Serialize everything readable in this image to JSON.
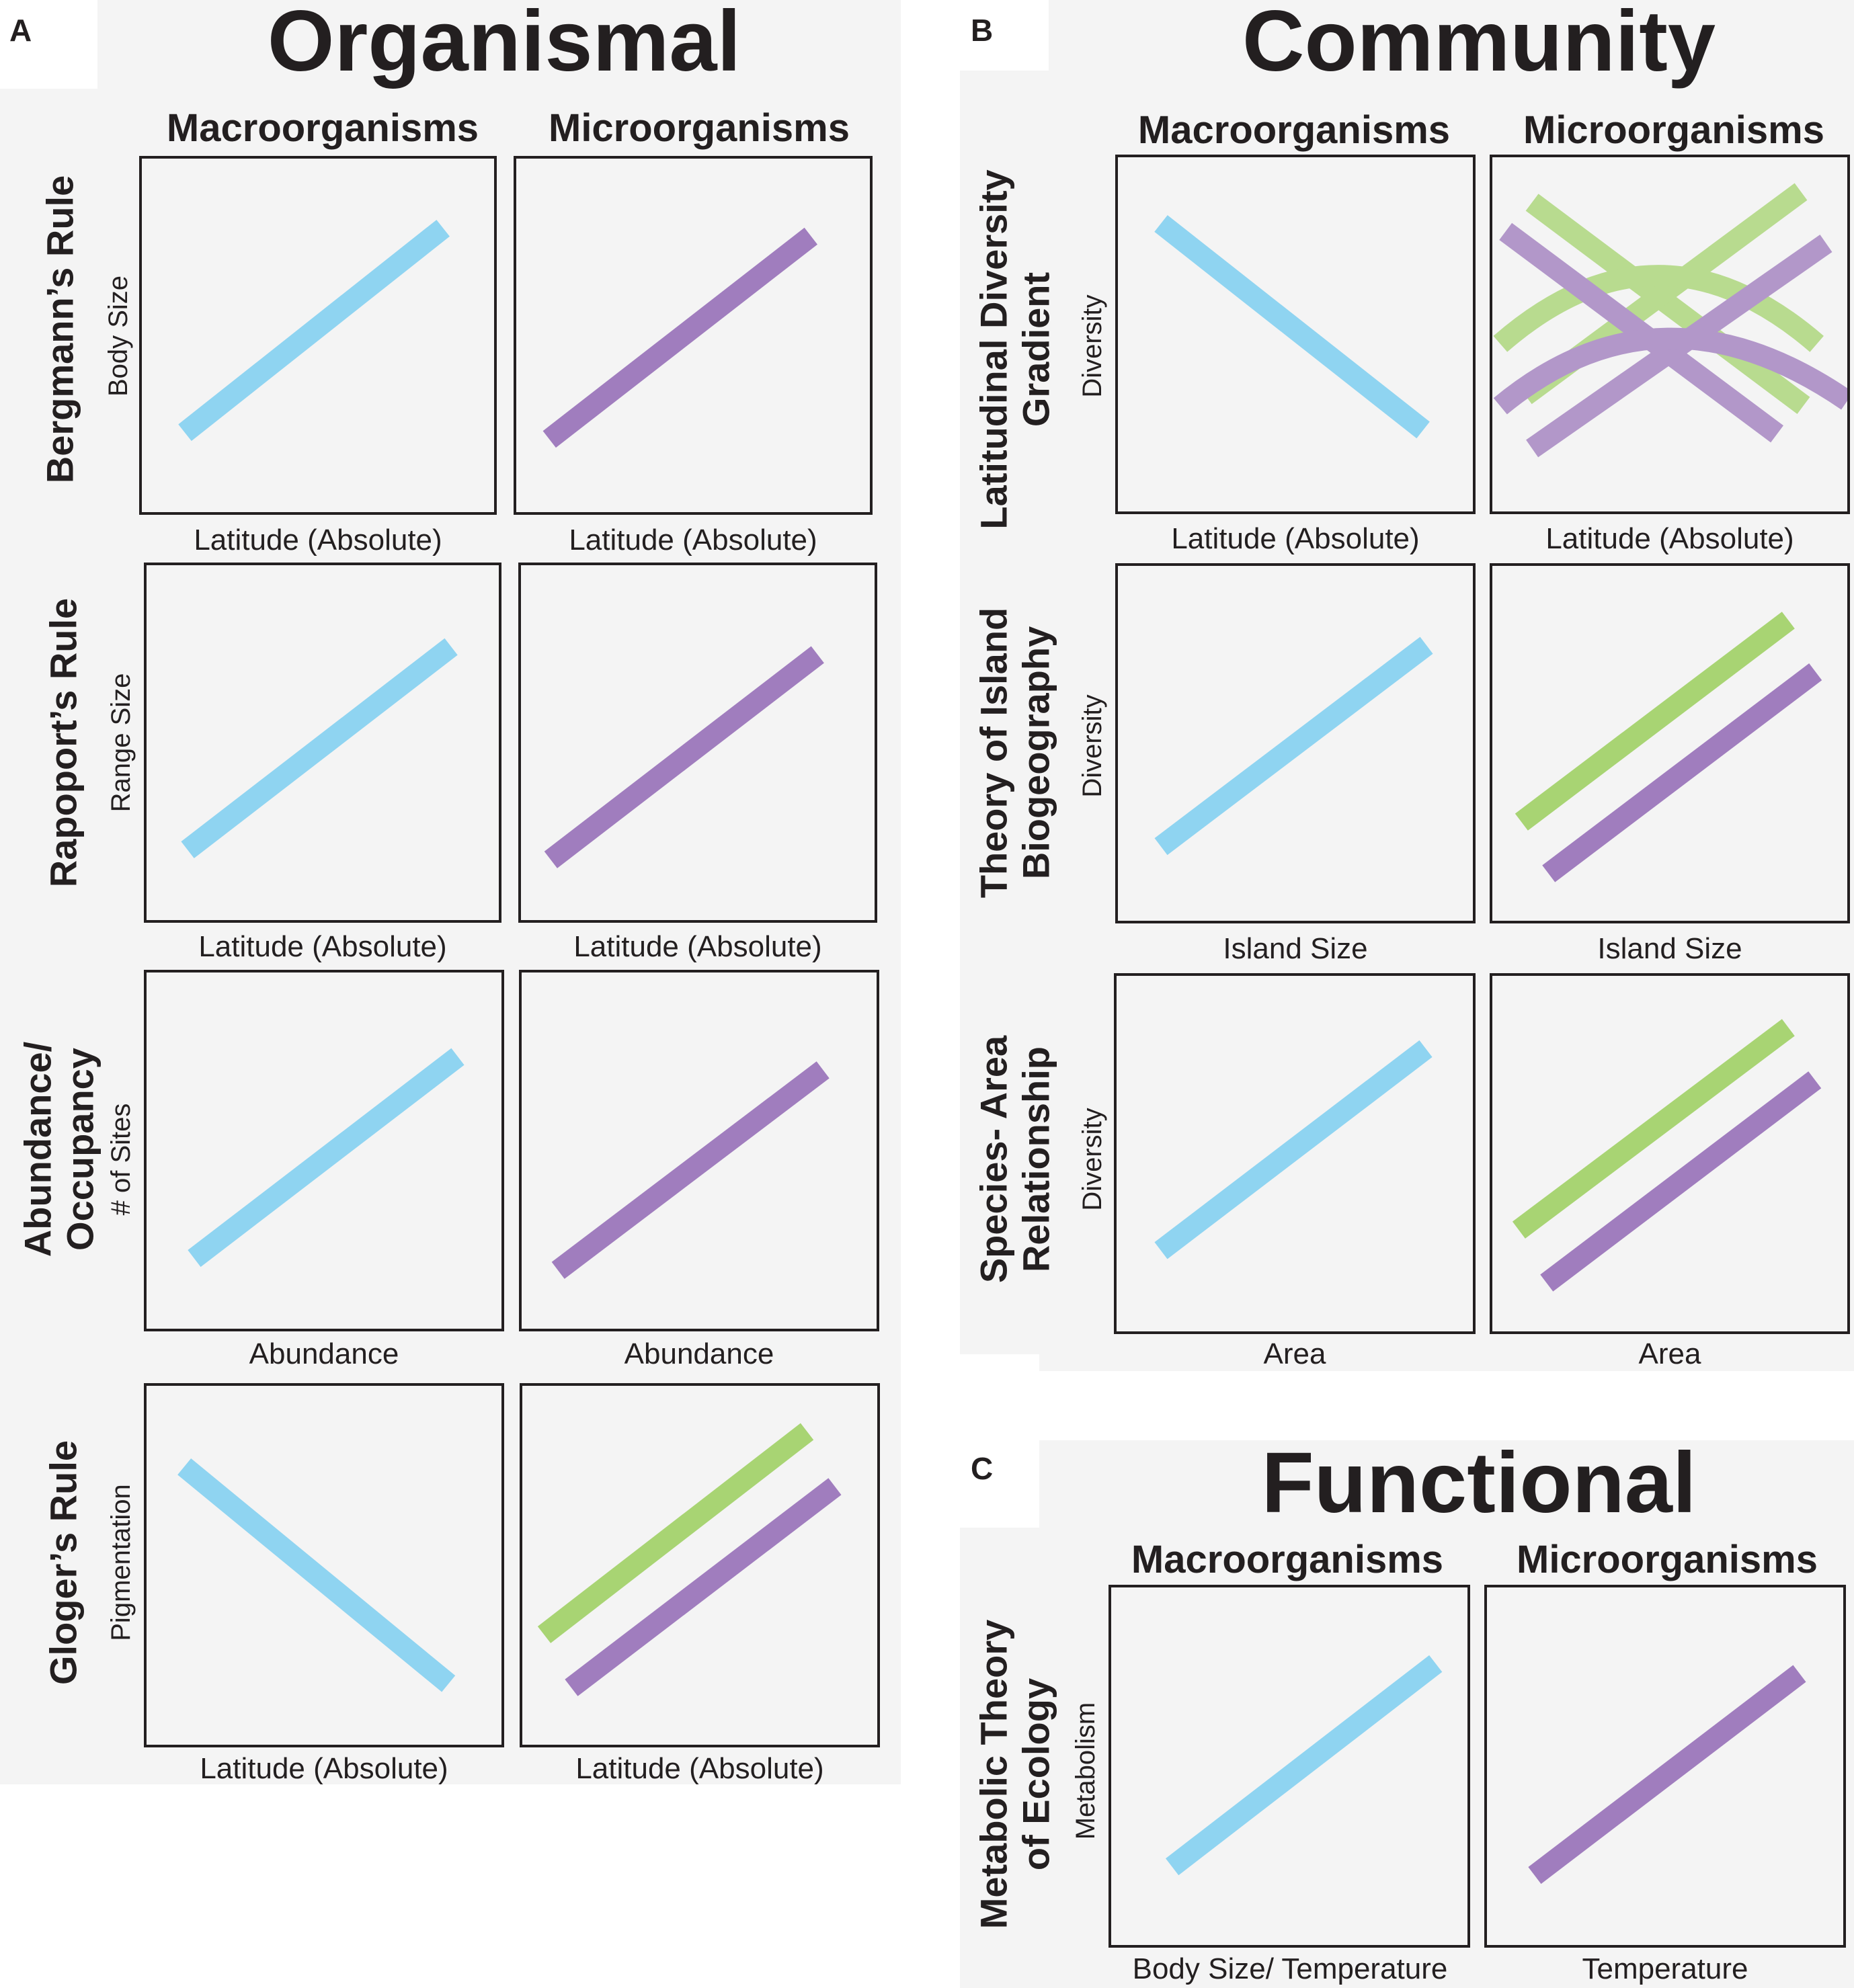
{
  "colors": {
    "macro": "#8fd4f1",
    "micro_purple": "#a07dbe",
    "micro_green": "#a8d473",
    "panel_bg": "#f4f4f4",
    "frame": "#231f20"
  },
  "panels": {
    "A": {
      "letter": "A",
      "title": "Organismal"
    },
    "B": {
      "letter": "B",
      "title": "Community"
    },
    "C": {
      "letter": "C",
      "title": "Functional"
    }
  },
  "columns": {
    "macro": "Macroorganisms",
    "micro": "Microorganisms"
  },
  "rows": {
    "bergmann": {
      "label_lines": [
        "Bergmann’s Rule"
      ],
      "ylabel": "Body Size",
      "xlabel_macro": "Latitude (Absolute)",
      "xlabel_micro": "Latitude (Absolute)"
    },
    "rapoport": {
      "label_lines": [
        "Rapoport’s Rule"
      ],
      "ylabel": "Range Size",
      "xlabel_macro": "Latitude (Absolute)",
      "xlabel_micro": "Latitude (Absolute)"
    },
    "abundance": {
      "label_lines": [
        "Abundance/",
        "Occupancy"
      ],
      "ylabel": "# of Sites",
      "xlabel_macro": "Abundance",
      "xlabel_micro": "Abundance"
    },
    "gloger": {
      "label_lines": [
        "Gloger’s Rule"
      ],
      "ylabel": "Pigmentation",
      "xlabel_macro": "Latitude (Absolute)",
      "xlabel_micro": "Latitude (Absolute)"
    },
    "ldg": {
      "label_lines": [
        "Latitudinal Diversity",
        "Gradient"
      ],
      "ylabel": "Diversity",
      "xlabel_macro": "Latitude (Absolute)",
      "xlabel_micro": "Latitude (Absolute)"
    },
    "island": {
      "label_lines": [
        "Theory of Island",
        "Biogeography"
      ],
      "ylabel": "Diversity",
      "xlabel_macro": "Island Size",
      "xlabel_micro": "Island Size"
    },
    "species_area": {
      "label_lines": [
        "Species- Area",
        "Relationship"
      ],
      "ylabel": "Diversity",
      "xlabel_macro": "Area",
      "xlabel_micro": "Area"
    },
    "mte": {
      "label_lines": [
        "Metabolic Theory",
        "of Ecology"
      ],
      "ylabel": "Metabolism",
      "xlabel_macro": "Body Size/ Temperature",
      "xlabel_micro": "Temperature"
    }
  },
  "trends": {
    "bergmann": {
      "macro": "positive",
      "micro": "positive"
    },
    "rapoport": {
      "macro": "positive",
      "micro": "positive"
    },
    "abundance": {
      "macro": "positive",
      "micro": "positive"
    },
    "gloger": {
      "macro": "negative",
      "micro": "positive (two groups)"
    },
    "ldg": {
      "macro": "negative",
      "micro": "variable: positive, negative, hump-shaped"
    },
    "island": {
      "macro": "positive",
      "micro": "positive (two groups)"
    },
    "species_area": {
      "macro": "positive",
      "micro": "positive (two groups)"
    },
    "mte": {
      "macro": "positive",
      "micro": "positive"
    }
  }
}
